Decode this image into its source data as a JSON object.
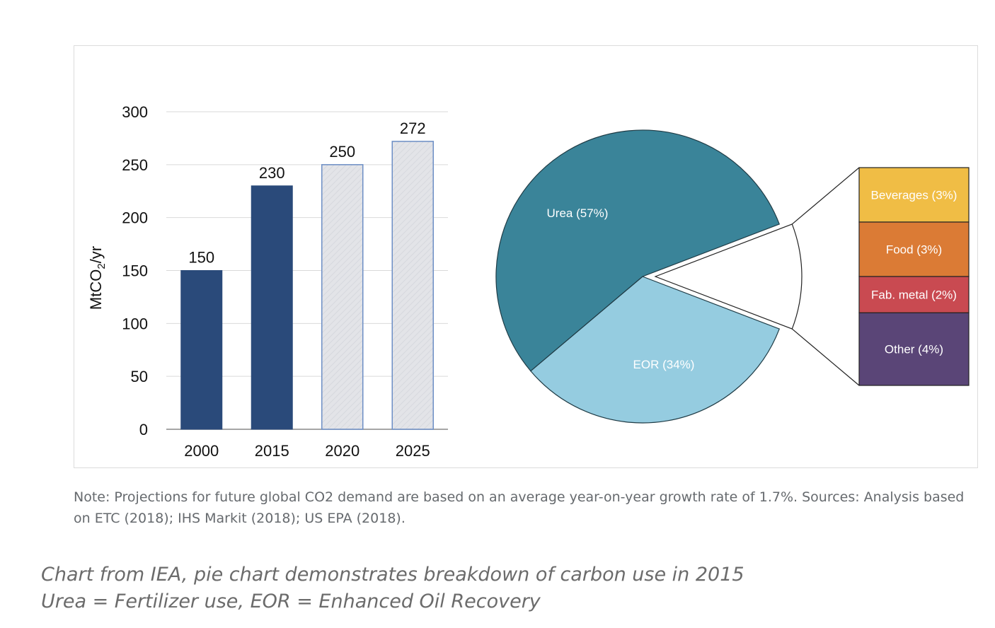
{
  "chart_data": [
    {
      "type": "bar",
      "ylabel": "MtCO2/yr",
      "ylim": [
        0,
        300
      ],
      "yticks": [
        0,
        50,
        100,
        150,
        200,
        250,
        300
      ],
      "grid": true,
      "categories": [
        "2000",
        "2015",
        "2020",
        "2025"
      ],
      "values": [
        150,
        230,
        250,
        272
      ],
      "data_labels": [
        "150",
        "230",
        "250",
        "272"
      ],
      "bar_styles": [
        "historical",
        "historical",
        "projection",
        "projection"
      ],
      "colors": {
        "historical": "#2a4a7a",
        "projection_fill": "#e3e4e8",
        "projection_border": "#6c8ec5",
        "grid": "#d9d9d9",
        "axis": "#888888"
      }
    },
    {
      "type": "pie",
      "slices": [
        {
          "label": "Urea (57%)",
          "value": 57,
          "color": "#3a8499"
        },
        {
          "label": "EOR (34%)",
          "value": 34,
          "color": "#95cce0"
        },
        {
          "label": "",
          "value": 12,
          "color": "#ffffff",
          "exploded": true
        }
      ],
      "breakdown": [
        {
          "label": "Beverages (3%)",
          "value": 3,
          "color": "#f0bd45"
        },
        {
          "label": "Food (3%)",
          "value": 3,
          "color": "#db7b35"
        },
        {
          "label": "Fab. metal (2%)",
          "value": 2,
          "color": "#c94a51"
        },
        {
          "label": "Other (4%)",
          "value": 4,
          "color": "#5a4577"
        }
      ]
    }
  ],
  "note": "Note: Projections for future global CO2 demand are based on an average year-on-year growth rate of 1.7%. Sources: Analysis based on ETC (2018); IHS Markit (2018); US EPA (2018).",
  "caption": {
    "line1": "Chart from IEA, pie chart demonstrates breakdown of carbon use in 2015",
    "line2": "Urea = Fertilizer use, EOR = Enhanced Oil Recovery"
  }
}
